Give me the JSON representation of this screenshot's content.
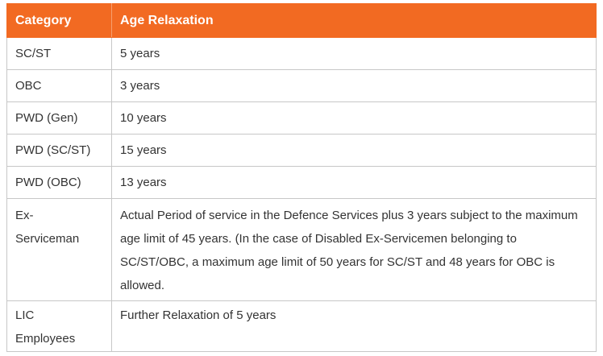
{
  "table": {
    "headers": {
      "category": "Category",
      "age_relaxation": "Age Relaxation"
    },
    "rows": [
      {
        "category": "SC/ST",
        "relaxation": "5 years"
      },
      {
        "category": "OBC",
        "relaxation": "3 years"
      },
      {
        "category": "PWD (Gen)",
        "relaxation": "10 years"
      },
      {
        "category": "PWD (SC/ST)",
        "relaxation": "15 years"
      },
      {
        "category": "PWD (OBC)",
        "relaxation": "13 years"
      },
      {
        "category_line1": "Ex-",
        "category_line2": "Serviceman",
        "relaxation": "Actual Period of service in the Defence Services plus 3 years subject to the maximum age limit of 45 years. (In the case of Disabled Ex-Servicemen belonging to SC/ST/OBC, a maximum age limit of 50 years for SC/ST and 48 years for OBC is allowed."
      },
      {
        "category_line1": "LIC",
        "category_line2": "Employees",
        "relaxation": "Further Relaxation of 5 years"
      }
    ]
  },
  "colors": {
    "header_bg": "#f26a22",
    "header_text": "#ffffff",
    "border": "#c7c7c7",
    "body_text": "#333333"
  }
}
